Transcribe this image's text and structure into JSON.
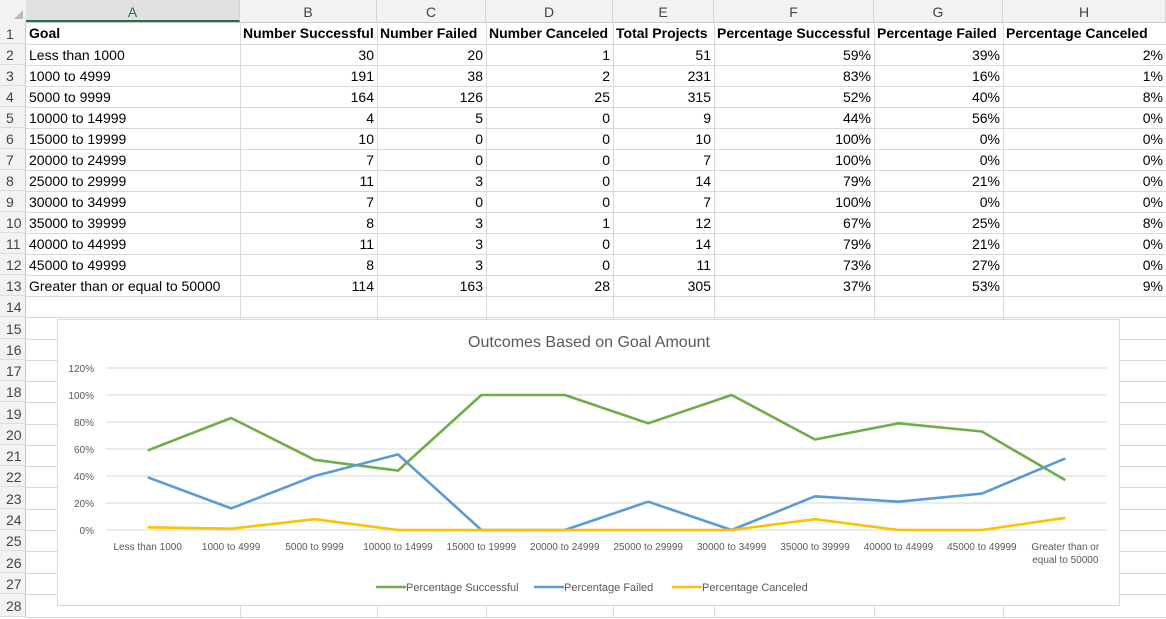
{
  "columns": [
    "A",
    "B",
    "C",
    "D",
    "E",
    "F",
    "G",
    "H"
  ],
  "selected_column": "A",
  "row_numbers": [
    "1",
    "2",
    "3",
    "4",
    "5",
    "6",
    "7",
    "8",
    "9",
    "10",
    "11",
    "12",
    "13",
    "14",
    "15",
    "16",
    "17",
    "18",
    "19",
    "20",
    "21",
    "22",
    "23",
    "24",
    "25",
    "26",
    "27",
    "28"
  ],
  "header_row": [
    "Goal",
    "Number Successful",
    "Number Failed",
    "Number Canceled",
    "Total Projects",
    "Percentage Successful",
    "Percentage Failed",
    "Percentage Canceled"
  ],
  "rows": [
    [
      "Less than 1000",
      "30",
      "20",
      "1",
      "51",
      "59%",
      "39%",
      "2%"
    ],
    [
      "1000 to 4999",
      "191",
      "38",
      "2",
      "231",
      "83%",
      "16%",
      "1%"
    ],
    [
      "5000 to 9999",
      "164",
      "126",
      "25",
      "315",
      "52%",
      "40%",
      "8%"
    ],
    [
      "10000 to 14999",
      "4",
      "5",
      "0",
      "9",
      "44%",
      "56%",
      "0%"
    ],
    [
      "15000 to 19999",
      "10",
      "0",
      "0",
      "10",
      "100%",
      "0%",
      "0%"
    ],
    [
      "20000 to 24999",
      "7",
      "0",
      "0",
      "7",
      "100%",
      "0%",
      "0%"
    ],
    [
      "25000 to 29999",
      "11",
      "3",
      "0",
      "14",
      "79%",
      "21%",
      "0%"
    ],
    [
      "30000 to 34999",
      "7",
      "0",
      "0",
      "7",
      "100%",
      "0%",
      "0%"
    ],
    [
      "35000 to 39999",
      "8",
      "3",
      "1",
      "12",
      "67%",
      "25%",
      "8%"
    ],
    [
      "40000 to 44999",
      "11",
      "3",
      "0",
      "14",
      "79%",
      "21%",
      "0%"
    ],
    [
      "45000 to 49999",
      "8",
      "3",
      "0",
      "11",
      "73%",
      "27%",
      "0%"
    ],
    [
      "Greater than or equal to 50000",
      "114",
      "163",
      "28",
      "305",
      "37%",
      "53%",
      "9%"
    ]
  ],
  "colors": {
    "successful": "#70ad47",
    "failed": "#5b9bd5",
    "canceled": "#ffc000",
    "select_accent": "#217346"
  },
  "chart_data": {
    "type": "line",
    "title": "Outcomes Based on Goal Amount",
    "categories": [
      "Less than 1000",
      "1000 to 4999",
      "5000 to 9999",
      "10000 to 14999",
      "15000 to 19999",
      "20000 to 24999",
      "25000 to 29999",
      "30000 to 34999",
      "35000 to 39999",
      "40000 to 44999",
      "45000 to 49999",
      "Greater than or equal to 50000"
    ],
    "series": [
      {
        "name": "Percentage Successful",
        "values": [
          59,
          83,
          52,
          44,
          100,
          100,
          79,
          100,
          67,
          79,
          73,
          37
        ]
      },
      {
        "name": "Percentage Failed",
        "values": [
          39,
          16,
          40,
          56,
          0,
          0,
          21,
          0,
          25,
          21,
          27,
          53
        ]
      },
      {
        "name": "Percentage Canceled",
        "values": [
          2,
          1,
          8,
          0,
          0,
          0,
          0,
          0,
          8,
          0,
          0,
          9
        ]
      }
    ],
    "ylim": [
      0,
      120
    ],
    "yticks": [
      "0%",
      "20%",
      "40%",
      "60%",
      "80%",
      "100%",
      "120%"
    ],
    "grid": true,
    "legend": "bottom"
  }
}
